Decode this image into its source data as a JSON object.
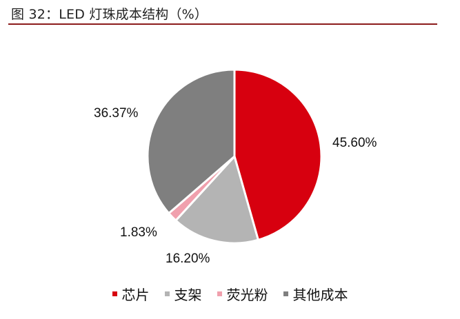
{
  "header": {
    "title": "图 32：LED 灯珠成本结构（%）"
  },
  "chart_data": {
    "type": "pie",
    "title": "LED 灯珠成本结构（%）",
    "categories": [
      "芯片",
      "支架",
      "荧光粉",
      "其他成本"
    ],
    "values": [
      45.6,
      16.2,
      1.83,
      36.37
    ],
    "labels": [
      "45.60%",
      "16.20%",
      "1.83%",
      "36.37%"
    ],
    "colors": [
      "#d7000f",
      "#b4b4b4",
      "#f0a0ad",
      "#7f7f7f"
    ],
    "start_angle": "12 o'clock, clockwise",
    "legend_position": "bottom"
  },
  "legend": {
    "items": [
      {
        "label": "芯片",
        "color": "#d7000f"
      },
      {
        "label": "支架",
        "color": "#b4b4b4"
      },
      {
        "label": "荧光粉",
        "color": "#f0a0ad"
      },
      {
        "label": "其他成本",
        "color": "#7f7f7f"
      }
    ]
  }
}
